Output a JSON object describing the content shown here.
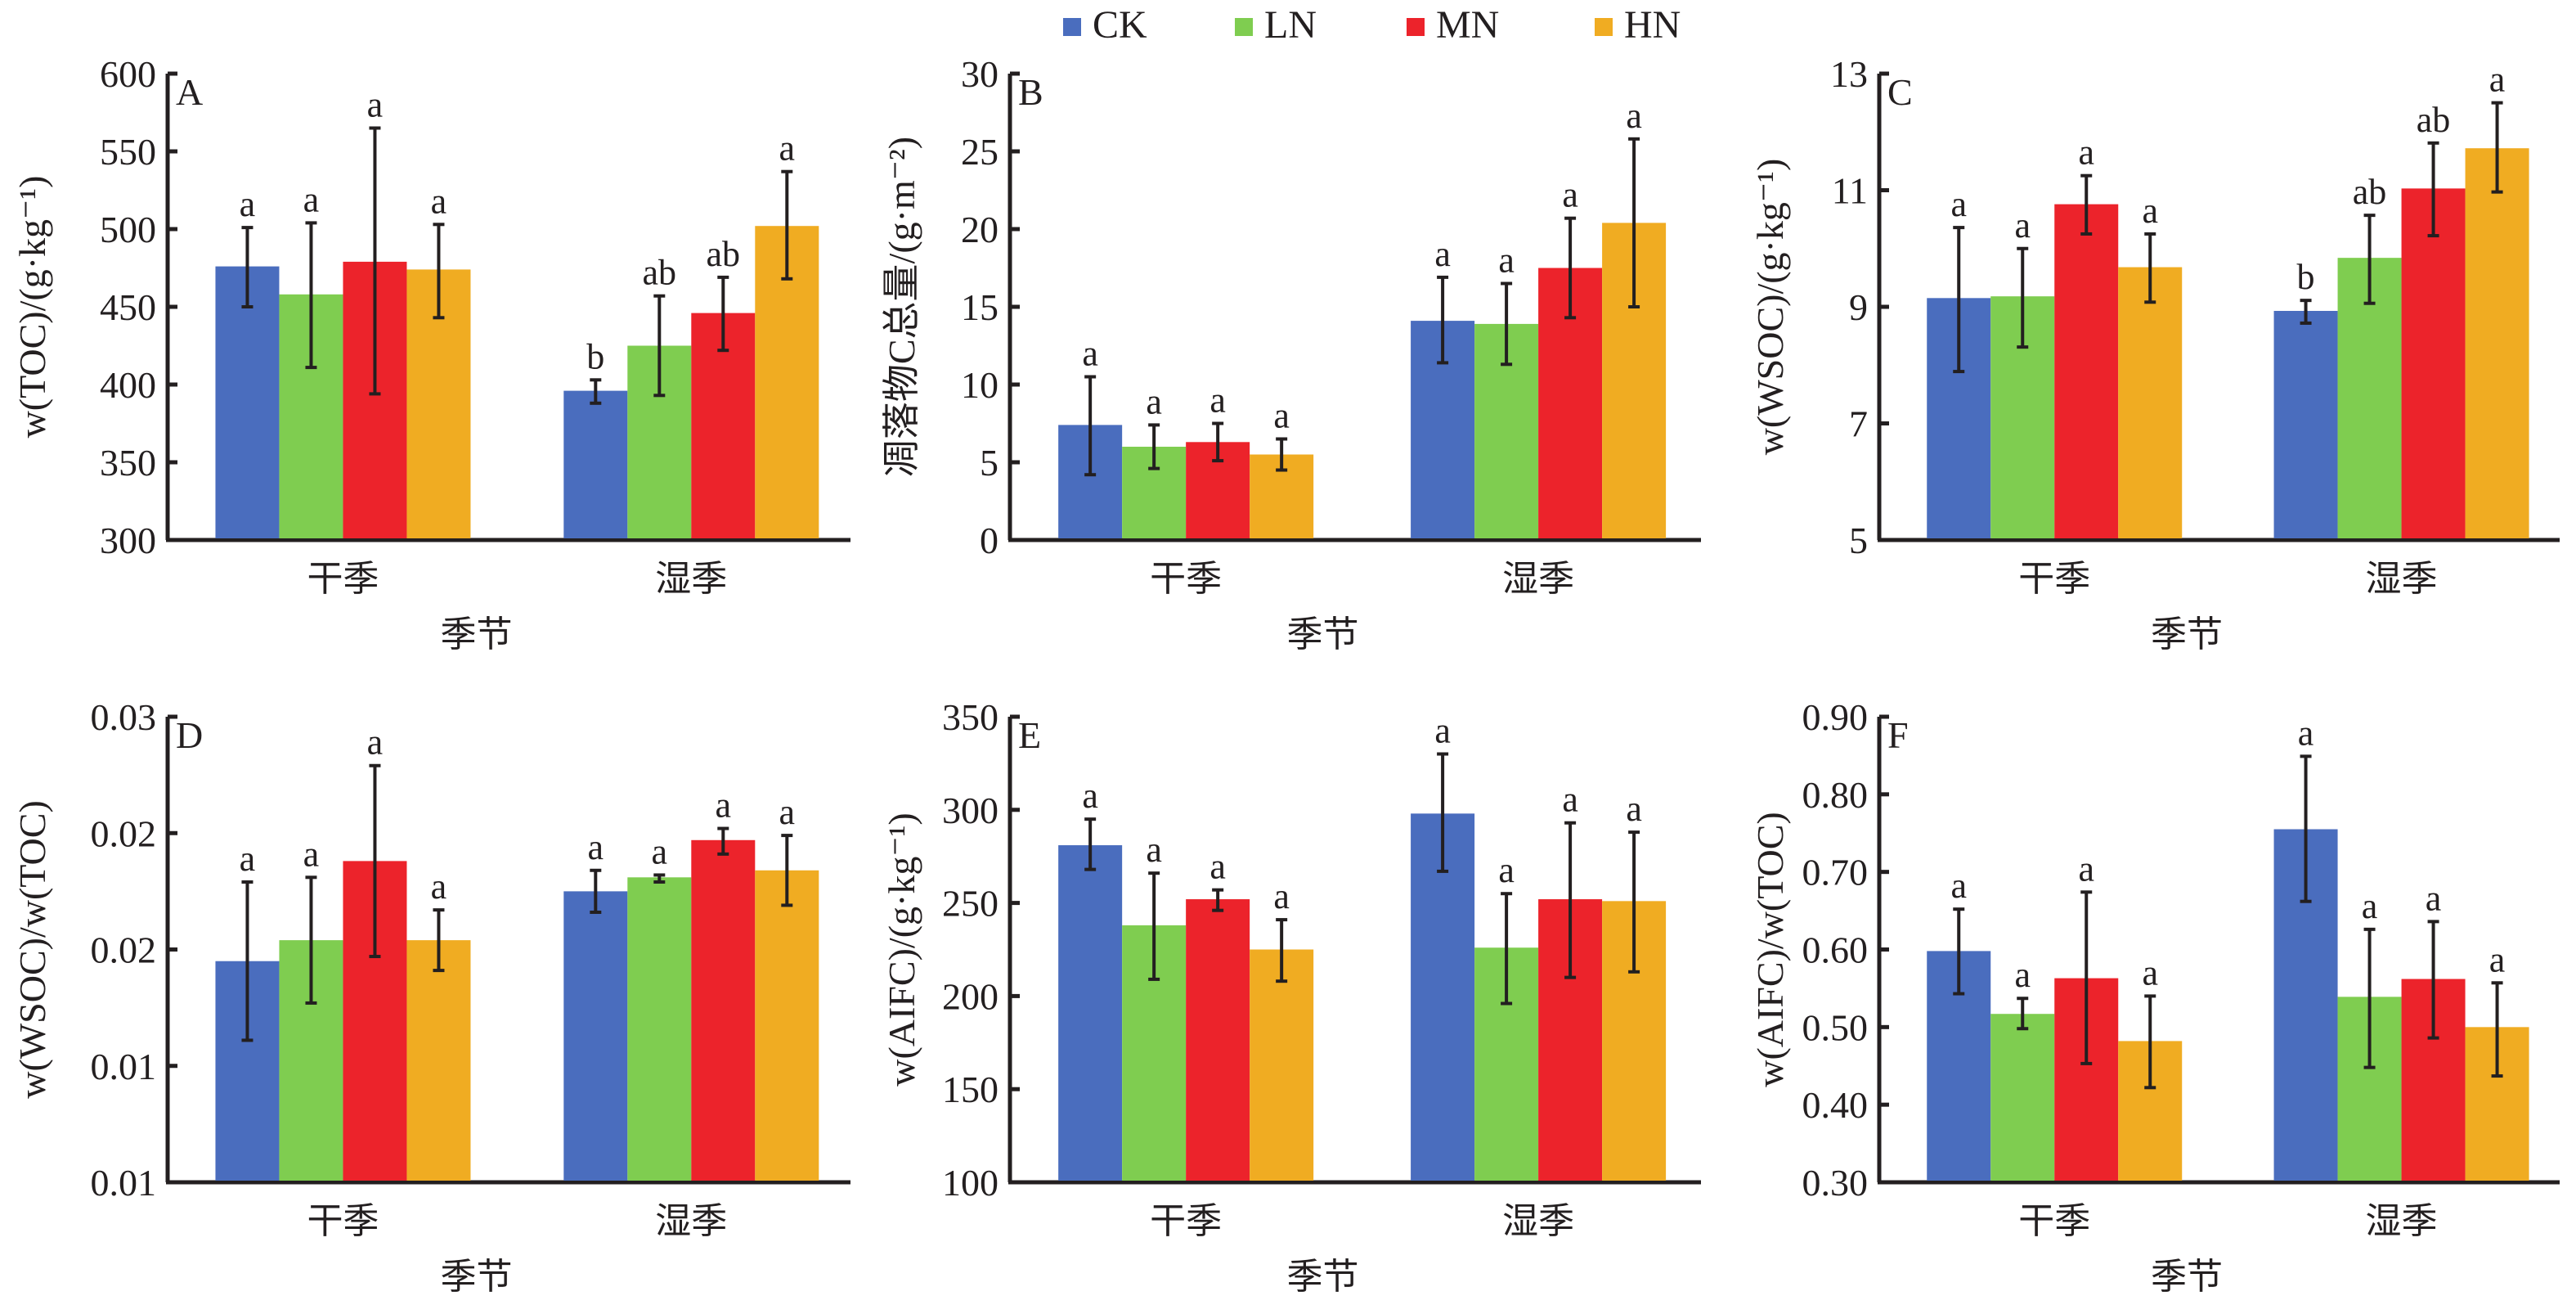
{
  "legend": {
    "items": [
      {
        "name": "CK",
        "color": "#4A6DBE"
      },
      {
        "name": "LN",
        "color": "#7FCD50"
      },
      {
        "name": "MN",
        "color": "#EC232B"
      },
      {
        "name": "HN",
        "color": "#F0AC22"
      }
    ],
    "placement": "top-center"
  },
  "chart_data": [
    {
      "type": "bar",
      "panel": "A",
      "title": "",
      "xlabel": "季节",
      "ylabel": "w(TOC)/(g·kg⁻¹)",
      "categories": [
        "干季",
        "湿季"
      ],
      "ylim": [
        300,
        600
      ],
      "yticks": [
        300,
        350,
        400,
        450,
        500,
        550,
        600
      ],
      "ytick_labels": [
        "300",
        "350",
        "400",
        "450",
        "500",
        "550",
        "600"
      ],
      "series": [
        {
          "name": "CK",
          "values": [
            476,
            396
          ],
          "err_low": [
            450,
            388
          ],
          "err_high": [
            501,
            403
          ],
          "sig": [
            "a",
            "b"
          ]
        },
        {
          "name": "LN",
          "values": [
            458,
            425
          ],
          "err_low": [
            411,
            393
          ],
          "err_high": [
            504,
            457
          ],
          "sig": [
            "a",
            "ab"
          ]
        },
        {
          "name": "MN",
          "values": [
            479,
            446
          ],
          "err_low": [
            394,
            422
          ],
          "err_high": [
            565,
            469
          ],
          "sig": [
            "a",
            "ab"
          ]
        },
        {
          "name": "HN",
          "values": [
            474,
            502
          ],
          "err_low": [
            443,
            468
          ],
          "err_high": [
            503,
            537
          ],
          "sig": [
            "a",
            "a"
          ]
        }
      ]
    },
    {
      "type": "bar",
      "panel": "B",
      "title": "",
      "xlabel": "季节",
      "ylabel": "凋落物C总量/(g·m⁻²)",
      "categories": [
        "干季",
        "湿季"
      ],
      "ylim": [
        0,
        30
      ],
      "yticks": [
        0,
        5,
        10,
        15,
        20,
        25,
        30
      ],
      "ytick_labels": [
        "0",
        "5",
        "10",
        "15",
        "20",
        "25",
        "30"
      ],
      "series": [
        {
          "name": "CK",
          "values": [
            7.4,
            14.1
          ],
          "err_low": [
            4.2,
            11.4
          ],
          "err_high": [
            10.5,
            16.9
          ],
          "sig": [
            "a",
            "a"
          ]
        },
        {
          "name": "LN",
          "values": [
            6.0,
            13.9
          ],
          "err_low": [
            4.6,
            11.3
          ],
          "err_high": [
            7.4,
            16.5
          ],
          "sig": [
            "a",
            "a"
          ]
        },
        {
          "name": "MN",
          "values": [
            6.3,
            17.5
          ],
          "err_low": [
            5.1,
            14.3
          ],
          "err_high": [
            7.5,
            20.7
          ],
          "sig": [
            "a",
            "a"
          ]
        },
        {
          "name": "HN",
          "values": [
            5.5,
            20.4
          ],
          "err_low": [
            4.5,
            15.0
          ],
          "err_high": [
            6.5,
            25.8
          ],
          "sig": [
            "a",
            "a"
          ]
        }
      ]
    },
    {
      "type": "bar",
      "panel": "C",
      "title": "",
      "xlabel": "季节",
      "ylabel": "w(WSOC)/(g·kg⁻¹)",
      "categories": [
        "干季",
        "湿季"
      ],
      "ylim": [
        5,
        13
      ],
      "yticks": [
        5,
        7,
        9,
        11,
        13
      ],
      "ytick_labels": [
        "5",
        "7",
        "9",
        "11",
        "13"
      ],
      "series": [
        {
          "name": "CK",
          "values": [
            9.15,
            8.93
          ],
          "err_low": [
            7.89,
            8.72
          ],
          "err_high": [
            10.36,
            9.11
          ],
          "sig": [
            "a",
            "b"
          ]
        },
        {
          "name": "LN",
          "values": [
            9.18,
            9.84
          ],
          "err_low": [
            8.31,
            9.06
          ],
          "err_high": [
            10.0,
            10.57
          ],
          "sig": [
            "a",
            "ab"
          ]
        },
        {
          "name": "MN",
          "values": [
            10.76,
            11.03
          ],
          "err_low": [
            10.25,
            10.22
          ],
          "err_high": [
            11.25,
            11.81
          ],
          "sig": [
            "a",
            "ab"
          ]
        },
        {
          "name": "HN",
          "values": [
            9.68,
            11.72
          ],
          "err_low": [
            9.08,
            10.97
          ],
          "err_high": [
            10.25,
            12.5
          ],
          "sig": [
            "a",
            "a"
          ]
        }
      ]
    },
    {
      "type": "bar",
      "panel": "D",
      "title": "",
      "xlabel": "季节",
      "ylabel": "w(WSOC)/w(TOC)",
      "categories": [
        "干季",
        "湿季"
      ],
      "ylim": [
        0.01,
        0.03
      ],
      "yticks": [
        0.01,
        0.015,
        0.02,
        0.025,
        0.03
      ],
      "ytick_labels": [
        "0.01",
        "0.01",
        "0.02",
        "0.02",
        "0.03"
      ],
      "series": [
        {
          "name": "CK",
          "values": [
            0.0195,
            0.0225
          ],
          "err_low": [
            0.0161,
            0.0216
          ],
          "err_high": [
            0.0229,
            0.0234
          ],
          "sig": [
            "a",
            "a"
          ]
        },
        {
          "name": "LN",
          "values": [
            0.0204,
            0.0231
          ],
          "err_low": [
            0.0177,
            0.0229
          ],
          "err_high": [
            0.0231,
            0.0232
          ],
          "sig": [
            "a",
            "a"
          ]
        },
        {
          "name": "MN",
          "values": [
            0.0238,
            0.0247
          ],
          "err_low": [
            0.0197,
            0.0241
          ],
          "err_high": [
            0.0279,
            0.0252
          ],
          "sig": [
            "a",
            "a"
          ]
        },
        {
          "name": "HN",
          "values": [
            0.0204,
            0.0234
          ],
          "err_low": [
            0.0191,
            0.0219
          ],
          "err_high": [
            0.0217,
            0.0249
          ],
          "sig": [
            "a",
            "a"
          ]
        }
      ]
    },
    {
      "type": "bar",
      "panel": "E",
      "title": "",
      "xlabel": "季节",
      "ylabel": "w(AIFC)/(g·kg⁻¹)",
      "categories": [
        "干季",
        "湿季"
      ],
      "ylim": [
        100,
        350
      ],
      "yticks": [
        100,
        150,
        200,
        250,
        300,
        350
      ],
      "ytick_labels": [
        "100",
        "150",
        "200",
        "250",
        "300",
        "350"
      ],
      "series": [
        {
          "name": "CK",
          "values": [
            281,
            298
          ],
          "err_low": [
            268,
            267
          ],
          "err_high": [
            295,
            330
          ],
          "sig": [
            "a",
            "a"
          ]
        },
        {
          "name": "LN",
          "values": [
            238,
            226
          ],
          "err_low": [
            209,
            196
          ],
          "err_high": [
            266,
            255
          ],
          "sig": [
            "a",
            "a"
          ]
        },
        {
          "name": "MN",
          "values": [
            252,
            252
          ],
          "err_low": [
            246,
            210
          ],
          "err_high": [
            257,
            293
          ],
          "sig": [
            "a",
            "a"
          ]
        },
        {
          "name": "HN",
          "values": [
            225,
            251
          ],
          "err_low": [
            208,
            213
          ],
          "err_high": [
            241,
            288
          ],
          "sig": [
            "a",
            "a"
          ]
        }
      ]
    },
    {
      "type": "bar",
      "panel": "F",
      "title": "",
      "xlabel": "季节",
      "ylabel": "w(AIFC)/w(TOC)",
      "categories": [
        "干季",
        "湿季"
      ],
      "ylim": [
        0.3,
        0.9
      ],
      "yticks": [
        0.3,
        0.4,
        0.5,
        0.6,
        0.7,
        0.8,
        0.9
      ],
      "ytick_labels": [
        "0.30",
        "0.40",
        "0.50",
        "0.60",
        "0.70",
        "0.80",
        "0.90"
      ],
      "series": [
        {
          "name": "CK",
          "values": [
            0.598,
            0.755
          ],
          "err_low": [
            0.543,
            0.662
          ],
          "err_high": [
            0.652,
            0.849
          ],
          "sig": [
            "a",
            "a"
          ]
        },
        {
          "name": "LN",
          "values": [
            0.517,
            0.539
          ],
          "err_low": [
            0.498,
            0.448
          ],
          "err_high": [
            0.537,
            0.626
          ],
          "sig": [
            "a",
            "a"
          ]
        },
        {
          "name": "MN",
          "values": [
            0.563,
            0.562
          ],
          "err_low": [
            0.453,
            0.486
          ],
          "err_high": [
            0.674,
            0.636
          ],
          "sig": [
            "a",
            "a"
          ]
        },
        {
          "name": "HN",
          "values": [
            0.482,
            0.5
          ],
          "err_low": [
            0.422,
            0.437
          ],
          "err_high": [
            0.54,
            0.557
          ],
          "sig": [
            "a",
            "a"
          ]
        }
      ]
    }
  ]
}
